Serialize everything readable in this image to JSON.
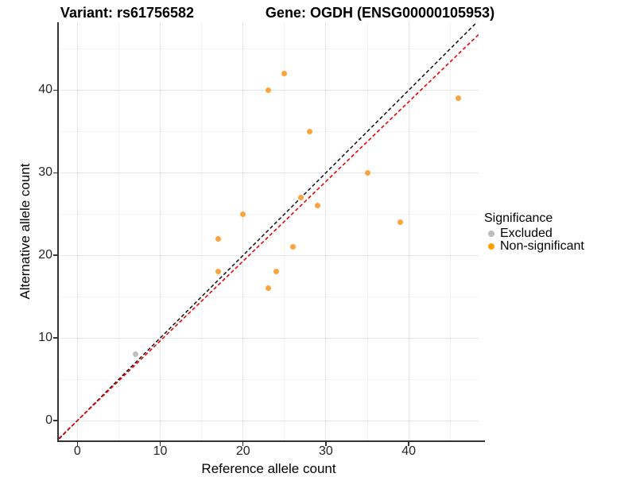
{
  "titles": {
    "variant": "Variant: rs61756582",
    "gene": "Gene: OGDH (ENSG00000105953)"
  },
  "legend": {
    "title": "Significance",
    "items": [
      {
        "label": "Excluded",
        "color": "#BEBEBE"
      },
      {
        "label": "Non-significant",
        "color": "#FFA305"
      }
    ]
  },
  "chart_data": {
    "type": "scatter",
    "xlabel": "Reference allele count",
    "ylabel": "Alternative allele count",
    "x_ticks": [
      0,
      10,
      20,
      30,
      40
    ],
    "y_ticks": [
      0,
      10,
      20,
      30,
      40
    ],
    "x_minor_ticks": [
      5,
      15,
      25,
      35,
      45
    ],
    "y_minor_ticks": [
      5,
      15,
      25,
      35,
      45
    ],
    "xlim": [
      -2.24,
      48.43
    ],
    "ylim": [
      -2.5,
      48.22
    ],
    "grid": {
      "major_color": "#E6E6E6",
      "minor_color": "#F4F4F4"
    },
    "series": [
      {
        "name": "Excluded",
        "color": "#BEBEBE",
        "points": [
          {
            "x": 7,
            "y": 8
          }
        ]
      },
      {
        "name": "Non-significant",
        "color": "#FBA43D",
        "points": [
          {
            "x": 17,
            "y": 18
          },
          {
            "x": 17,
            "y": 22
          },
          {
            "x": 20,
            "y": 25
          },
          {
            "x": 23,
            "y": 16
          },
          {
            "x": 23,
            "y": 40
          },
          {
            "x": 24,
            "y": 18
          },
          {
            "x": 25,
            "y": 42
          },
          {
            "x": 26,
            "y": 21
          },
          {
            "x": 27,
            "y": 27
          },
          {
            "x": 28,
            "y": 35
          },
          {
            "x": 29,
            "y": 26
          },
          {
            "x": 35,
            "y": 30
          },
          {
            "x": 39,
            "y": 24
          },
          {
            "x": 46,
            "y": 39
          }
        ]
      }
    ],
    "reference_lines": [
      {
        "name": "identity-line",
        "slope": 1.0,
        "intercept": 0,
        "color": "#1A1A1A",
        "style": "dashed"
      },
      {
        "name": "fitted-line",
        "slope": 0.965,
        "intercept": 0,
        "color": "#F20000",
        "style": "dashed"
      }
    ]
  }
}
